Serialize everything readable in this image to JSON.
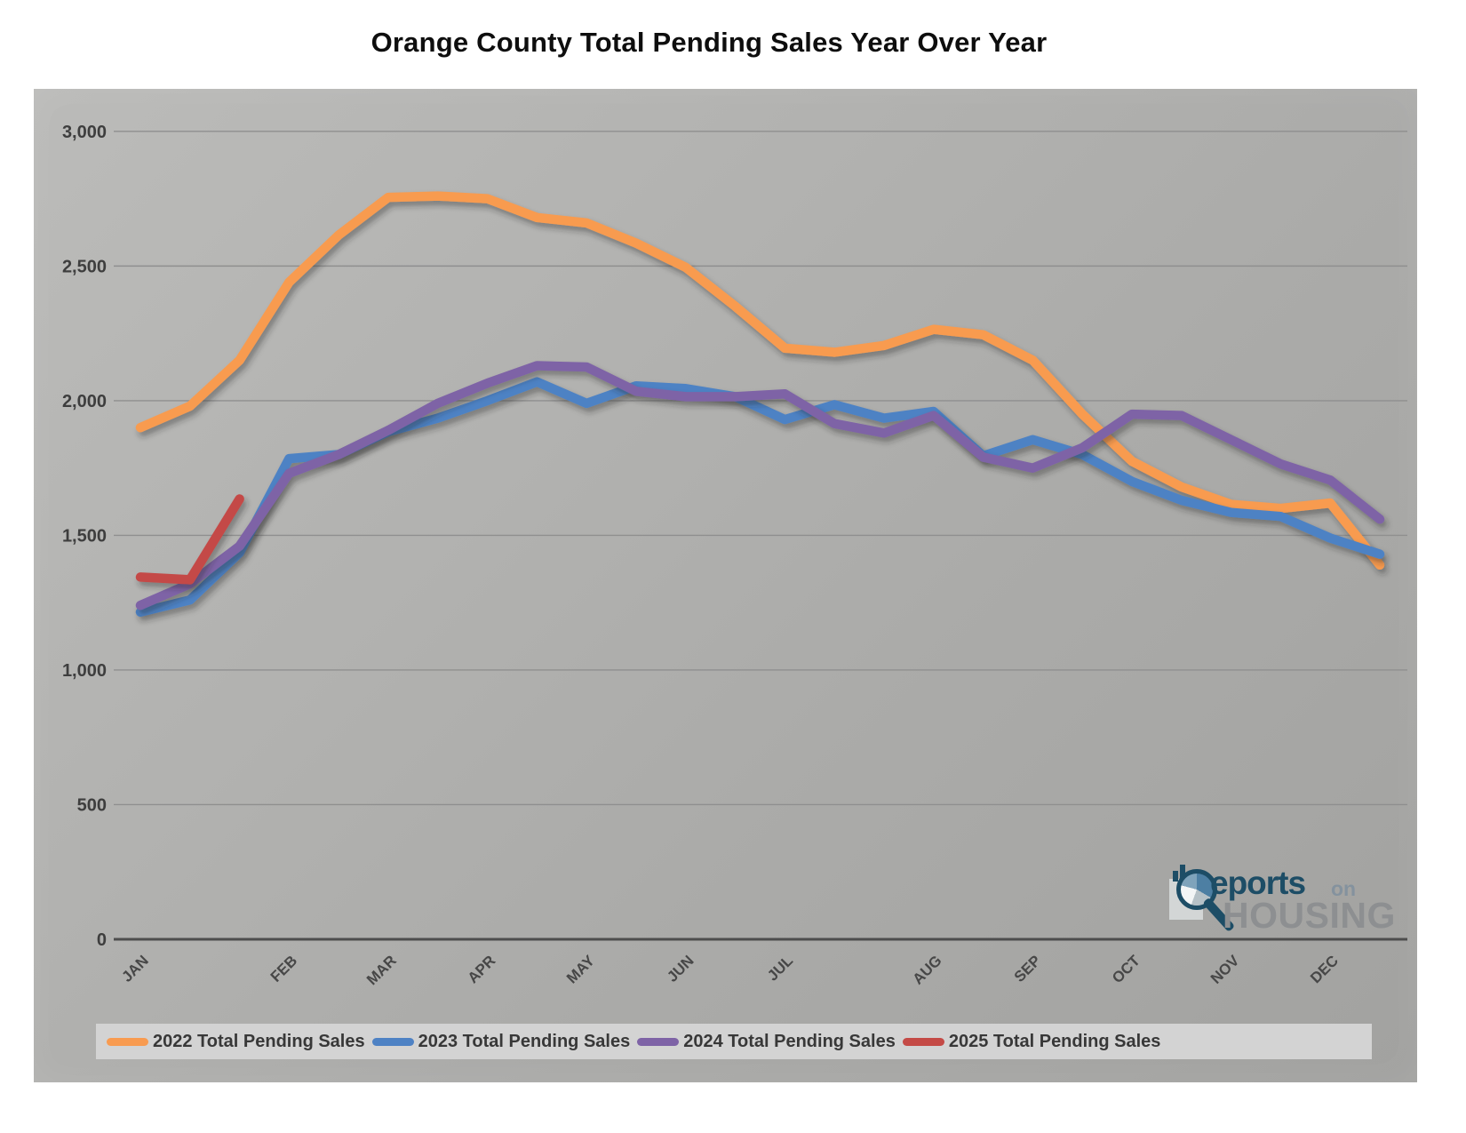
{
  "title": "Orange County Total Pending Sales Year Over Year",
  "logo": {
    "brand": "Reports on HOUSING",
    "reports_text": "eports",
    "on_text": "on",
    "housing_text": "HOUSING",
    "navy_color": "#1d4d66",
    "gray_color": "#8d8f91"
  },
  "chart_data": {
    "type": "line",
    "title": "Orange County Total Pending Sales Year Over Year",
    "xlabel": "",
    "ylabel": "",
    "ylim": [
      0,
      3000
    ],
    "grid": "horizontal",
    "legend_position": "bottom",
    "y_ticks": {
      "values": [
        0,
        500,
        1000,
        1500,
        2000,
        2500,
        3000
      ],
      "labels": [
        "0",
        "500",
        "1,000",
        "1,500",
        "2,000",
        "2,500",
        "3,000"
      ]
    },
    "x_axis": {
      "months": [
        "JAN",
        "FEB",
        "MAR",
        "APR",
        "MAY",
        "JUN",
        "JUL",
        "AUG",
        "SEP",
        "OCT",
        "NOV",
        "DEC"
      ],
      "tick_point_indices": [
        0,
        3,
        5,
        7,
        9,
        11,
        13,
        16,
        18,
        20,
        22,
        24
      ],
      "points_per_series": 26,
      "note": "semi-monthly readings"
    },
    "series": [
      {
        "name": "2022 Total Pending Sales",
        "color": "#F89B50",
        "values": [
          1900,
          1980,
          2150,
          2440,
          2615,
          2755,
          2760,
          2750,
          2680,
          2660,
          2585,
          2495,
          2350,
          2195,
          2180,
          2205,
          2265,
          2245,
          2150,
          1950,
          1775,
          1680,
          1615,
          1600,
          1620,
          1390
        ]
      },
      {
        "name": "2023 Total Pending Sales",
        "color": "#4E82C4",
        "values": [
          1215,
          1260,
          1435,
          1785,
          1800,
          1885,
          1935,
          2000,
          2070,
          1990,
          2055,
          2045,
          2015,
          1930,
          1985,
          1935,
          1960,
          1795,
          1855,
          1800,
          1700,
          1630,
          1585,
          1570,
          1490,
          1430
        ]
      },
      {
        "name": "2024 Total Pending Sales",
        "color": "#7E63A6",
        "values": [
          1240,
          1320,
          1460,
          1730,
          1800,
          1890,
          1990,
          2065,
          2130,
          2125,
          2035,
          2015,
          2015,
          2025,
          1915,
          1880,
          1945,
          1790,
          1750,
          1825,
          1950,
          1945,
          1855,
          1765,
          1705,
          1560
        ]
      },
      {
        "name": "2025 Total Pending Sales",
        "color": "#C44A46",
        "values": [
          1345,
          1335,
          1635
        ]
      }
    ]
  }
}
